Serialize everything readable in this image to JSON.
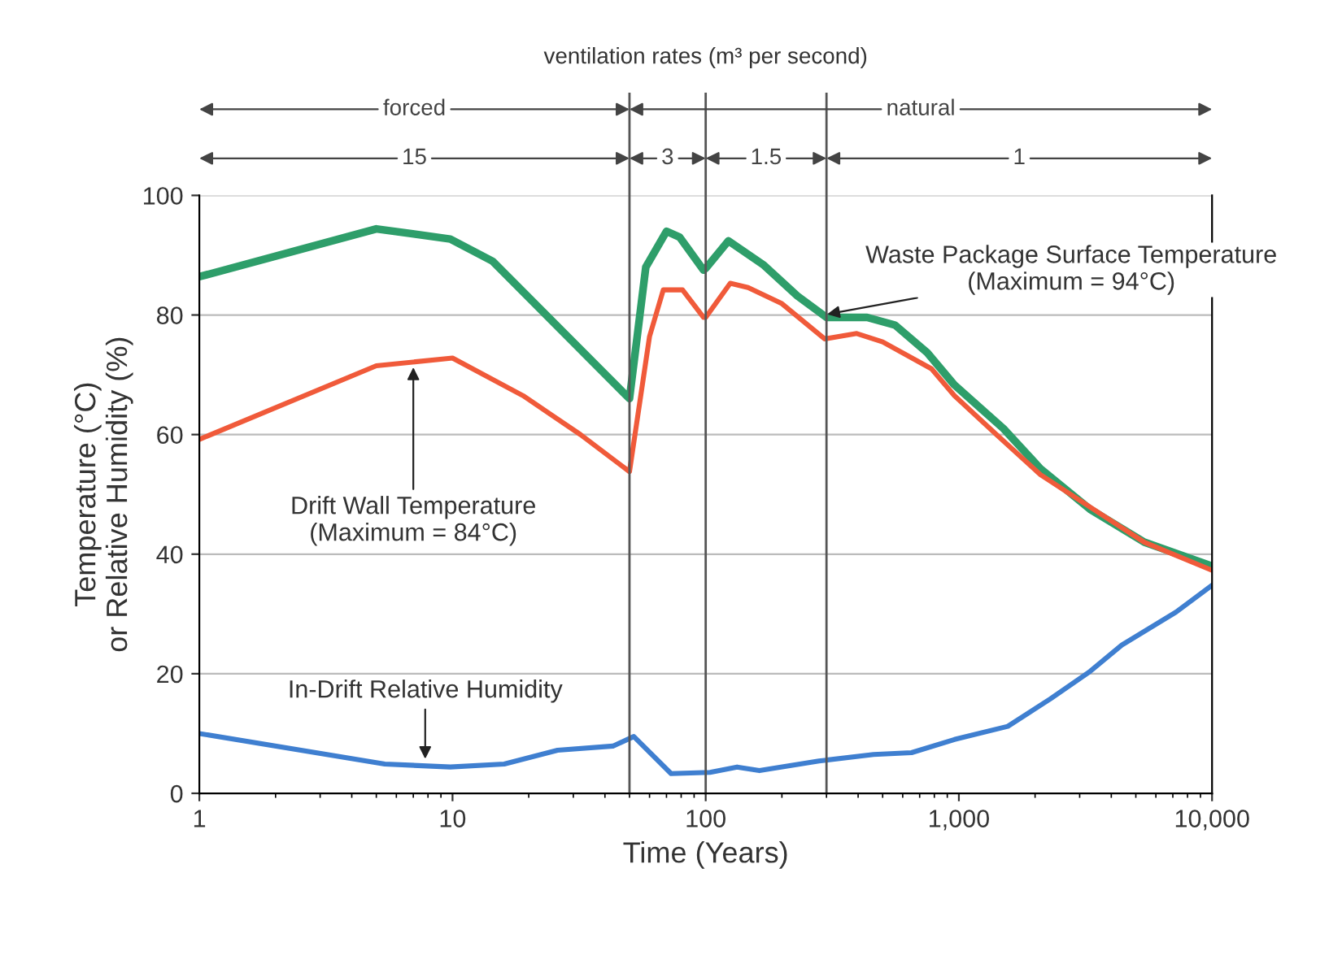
{
  "chart_data": {
    "type": "line",
    "title": "ventilation rates (m³ per second)",
    "xlabel": "Time (Years)",
    "ylabel": "Temperature (°C)\nor Relative Humidity (%)",
    "log": "x",
    "xlim": [
      1,
      10000
    ],
    "xticks": [
      1,
      10,
      100,
      {
        "value": 1000,
        "label": "1,000"
      },
      {
        "value": 10000,
        "label": "10,000"
      }
    ],
    "ylim": [
      0,
      100
    ],
    "yticks": [
      0,
      20,
      40,
      60,
      80,
      100
    ],
    "grid": "y",
    "marker": "none",
    "line_style": "solid",
    "series": [
      {
        "color": "#2e9e6a",
        "x": [
          1,
          5,
          9.8,
          14.4,
          50,
          58,
          70,
          79,
          98,
          100,
          123,
          170,
          230,
          300,
          434,
          560,
          750,
          960,
          1500,
          2100,
          3300,
          5400,
          10000
        ],
        "values": [
          86.4,
          94.4,
          92.7,
          89,
          66,
          88,
          94,
          93,
          87.5,
          87.8,
          92.4,
          88.3,
          83.2,
          79.6,
          79.6,
          78.3,
          73.7,
          68.3,
          61,
          54.3,
          47.5,
          42,
          38
        ]
      },
      {
        "color": "#f05a3a",
        "x": [
          1,
          5,
          10,
          19,
          32,
          50,
          60,
          68,
          81,
          98,
          100,
          125,
          147,
          200,
          295,
          395,
          500,
          780,
          960,
          1400,
          2100,
          3700,
          5400,
          10000
        ],
        "values": [
          59.2,
          71.5,
          72.8,
          66.5,
          60,
          53.8,
          76.4,
          84.2,
          84.2,
          79.6,
          79.6,
          85.3,
          84.6,
          81.9,
          76,
          76.9,
          75.5,
          71,
          66.5,
          60.1,
          53.3,
          46.5,
          42,
          37.3
        ]
      },
      {
        "color": "#3f7fd0",
        "x": [
          1,
          5.4,
          9.8,
          16,
          26,
          43,
          52,
          73,
          104,
          133,
          163,
          280,
          460,
          650,
          960,
          1560,
          2300,
          3300,
          4400,
          7200,
          10000
        ],
        "values": [
          10,
          4.9,
          4.4,
          4.9,
          7.2,
          7.9,
          9.5,
          3.3,
          3.5,
          4.4,
          3.8,
          5.4,
          6.5,
          6.8,
          9,
          11.2,
          15.8,
          20.4,
          24.8,
          30.3,
          34.8
        ]
      }
    ],
    "ref_lines": [
      {
        "axis": "x",
        "value": 50
      },
      {
        "axis": "x",
        "value": 100
      },
      {
        "axis": "x",
        "value": 300
      }
    ],
    "annotations": [
      "forced",
      "natural",
      "15",
      "3",
      "1.5",
      "1",
      {
        "text": "Drift Wall Temperature\n(Maximum = 84°C)",
        "x": 7,
        "y": 72
      },
      {
        "text": "In-Drift Relative Humidity",
        "x": 7.8,
        "y": 5
      },
      {
        "text": "Waste Package Surface Temperature\n(Maximum = 94°C)",
        "x": 290,
        "y": 80
      }
    ]
  }
}
